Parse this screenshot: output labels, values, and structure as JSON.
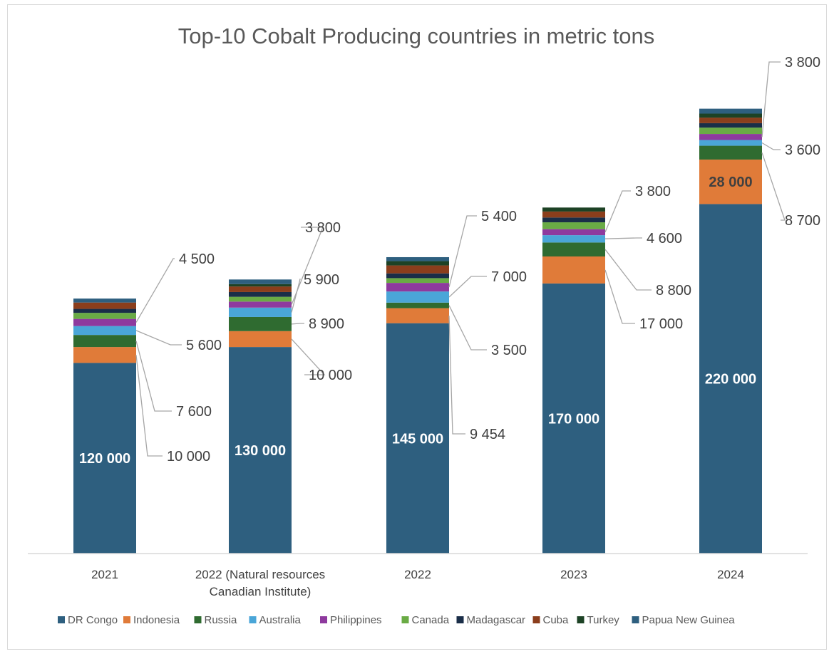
{
  "chart_data": {
    "type": "bar",
    "stacked": true,
    "title": "Top-10 Cobalt Producing countries in metric tons",
    "categories": [
      [
        "2021"
      ],
      [
        "2022  (Natural resources",
        "Canadian Institute)"
      ],
      [
        "2022"
      ],
      [
        "2023"
      ],
      [
        "2024"
      ]
    ],
    "series": [
      {
        "name": "DR Congo",
        "color": "#2e5f7f",
        "values": [
          120000,
          130000,
          145000,
          170000,
          220000
        ]
      },
      {
        "name": "Indonesia",
        "color": "#e07b39",
        "values": [
          10000,
          10000,
          9454,
          17000,
          28000
        ]
      },
      {
        "name": "Russia",
        "color": "#2f6b30",
        "values": [
          7600,
          8900,
          3500,
          8800,
          8700
        ]
      },
      {
        "name": "Australia",
        "color": "#4aa6d8",
        "values": [
          5600,
          5900,
          7000,
          4600,
          3600
        ]
      },
      {
        "name": "Philippines",
        "color": "#8e3a9e",
        "values": [
          4500,
          3800,
          5400,
          3800,
          3800
        ]
      },
      {
        "name": "Canada",
        "color": "#6aab45",
        "values": [
          3800,
          3000,
          3000,
          4300,
          4000
        ]
      },
      {
        "name": "Madagascar",
        "color": "#1a2e48",
        "values": [
          2500,
          3000,
          3000,
          3000,
          2800
        ]
      },
      {
        "name": "Cuba",
        "color": "#8b3e1c",
        "values": [
          4000,
          3500,
          5000,
          3800,
          3500
        ]
      },
      {
        "name": "Turkey",
        "color": "#1d4225",
        "values": [
          0,
          1500,
          2700,
          2500,
          2500
        ]
      },
      {
        "name": "Papua New Guinea",
        "color": "#2e5f7f",
        "values": [
          2500,
          2900,
          2500,
          0,
          3100
        ]
      }
    ],
    "labels": [
      [
        "120 000",
        "10 000",
        "7 600",
        "5 600",
        "4 500"
      ],
      [
        "130 000",
        "10 000",
        "8 900",
        "5 900",
        "3 800"
      ],
      [
        "145 000",
        "9 454",
        "3 500",
        "7 000",
        "5 400"
      ],
      [
        "170 000",
        "17 000",
        "8 800",
        "4 600",
        "3 800"
      ],
      [
        "220 000",
        "28 000",
        "8 700",
        "3 600",
        "3 800"
      ]
    ],
    "legend_position": "bottom",
    "grid": false
  }
}
